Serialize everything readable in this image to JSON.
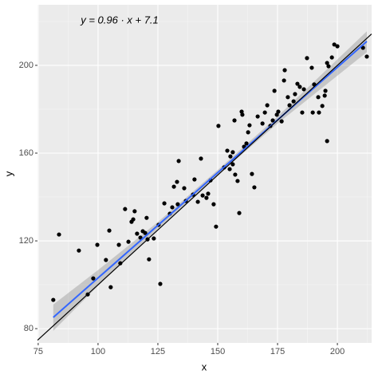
{
  "chart_data": {
    "type": "scatter",
    "annotation": "y = 0.96 · x + 7.1",
    "x_label": "x",
    "y_label": "y",
    "xlim": [
      74.7,
      214.3
    ],
    "ylim": [
      73.5,
      227.6
    ],
    "xticks": [
      75,
      100,
      125,
      150,
      175,
      200
    ],
    "yticks": [
      80,
      120,
      160,
      200
    ],
    "grid": true,
    "point_color": "#000000",
    "x": [
      81.3,
      83.7,
      92,
      95.7,
      98,
      99.7,
      103.3,
      104.7,
      105.3,
      108.7,
      109.3,
      111.3,
      112.7,
      114,
      114.7,
      115.3,
      116.3,
      117.7,
      118.7,
      119.7,
      120.3,
      121.3,
      120.7,
      123.3,
      125.3,
      126,
      127.7,
      130,
      131,
      131.7,
      133,
      133.7,
      133.3,
      136,
      136.7,
      139.7,
      140.3,
      141.7,
      143,
      143.7,
      145.3,
      146,
      147,
      148.3,
      149.3,
      150.3,
      152.7,
      154,
      155,
      155.3,
      156.3,
      156.3,
      157,
      157.3,
      158.3,
      159,
      160,
      160.3,
      161,
      162,
      162.7,
      163.3,
      164.3,
      165.3,
      166.7,
      168.7,
      169.7,
      170.7,
      172,
      173,
      173.7,
      174.7,
      175.3,
      176.7,
      177.7,
      178,
      179.3,
      180,
      181.7,
      182.3,
      183.3,
      184.3,
      185.3,
      186,
      187.3,
      189.3,
      189.7,
      190.3,
      192.3,
      192,
      195,
      194.7,
      193.7,
      195.7,
      196.3,
      195.7,
      197.7,
      198.7,
      200,
      210.7,
      212.3
    ],
    "y": [
      93.1,
      122.9,
      115.6,
      95.6,
      102.9,
      118.2,
      111.3,
      124.7,
      98.9,
      118.2,
      109.8,
      134.5,
      119.6,
      128.7,
      129.8,
      133.5,
      123.3,
      121.5,
      124.4,
      123.6,
      130.5,
      111.6,
      120.7,
      121.1,
      127.3,
      100.4,
      137.1,
      132.4,
      135.3,
      144.7,
      146.9,
      156.4,
      136.7,
      144,
      138.2,
      141.1,
      148,
      137.8,
      157.5,
      140.7,
      139.6,
      141.5,
      147.6,
      136.7,
      126.5,
      172.4,
      153.5,
      161.1,
      152.7,
      158.5,
      160.4,
      154.9,
      174.9,
      150.2,
      147.3,
      132.7,
      178.9,
      177.5,
      162.9,
      164.4,
      169.5,
      172.7,
      150.5,
      144.4,
      176.7,
      173.5,
      178.5,
      181.8,
      172.4,
      174.9,
      188.4,
      177.5,
      178.9,
      174.5,
      193.1,
      197.8,
      185.5,
      181.8,
      183.6,
      186.9,
      191.6,
      190.2,
      178.5,
      189.1,
      203.3,
      198.9,
      178.5,
      191.3,
      178.5,
      185.5,
      188.4,
      186.2,
      181.5,
      165.5,
      199.6,
      201.1,
      203.6,
      209.5,
      208.7,
      208,
      204
    ],
    "fit": {
      "color": "#3366ff",
      "slope": 0.96,
      "intercept": 7.1,
      "x_range": [
        81.3,
        212.3
      ]
    },
    "band": {
      "color": "#999999",
      "x": [
        81.3,
        100,
        125,
        150,
        175,
        212.3
      ],
      "lower": [
        79,
        99.5,
        125.6,
        149.9,
        173.5,
        206
      ],
      "upper": [
        91,
        106.7,
        128.6,
        152.3,
        176.7,
        215.5
      ]
    },
    "reference_line": {
      "color": "#000000",
      "slope": 1,
      "intercept": 0
    }
  }
}
